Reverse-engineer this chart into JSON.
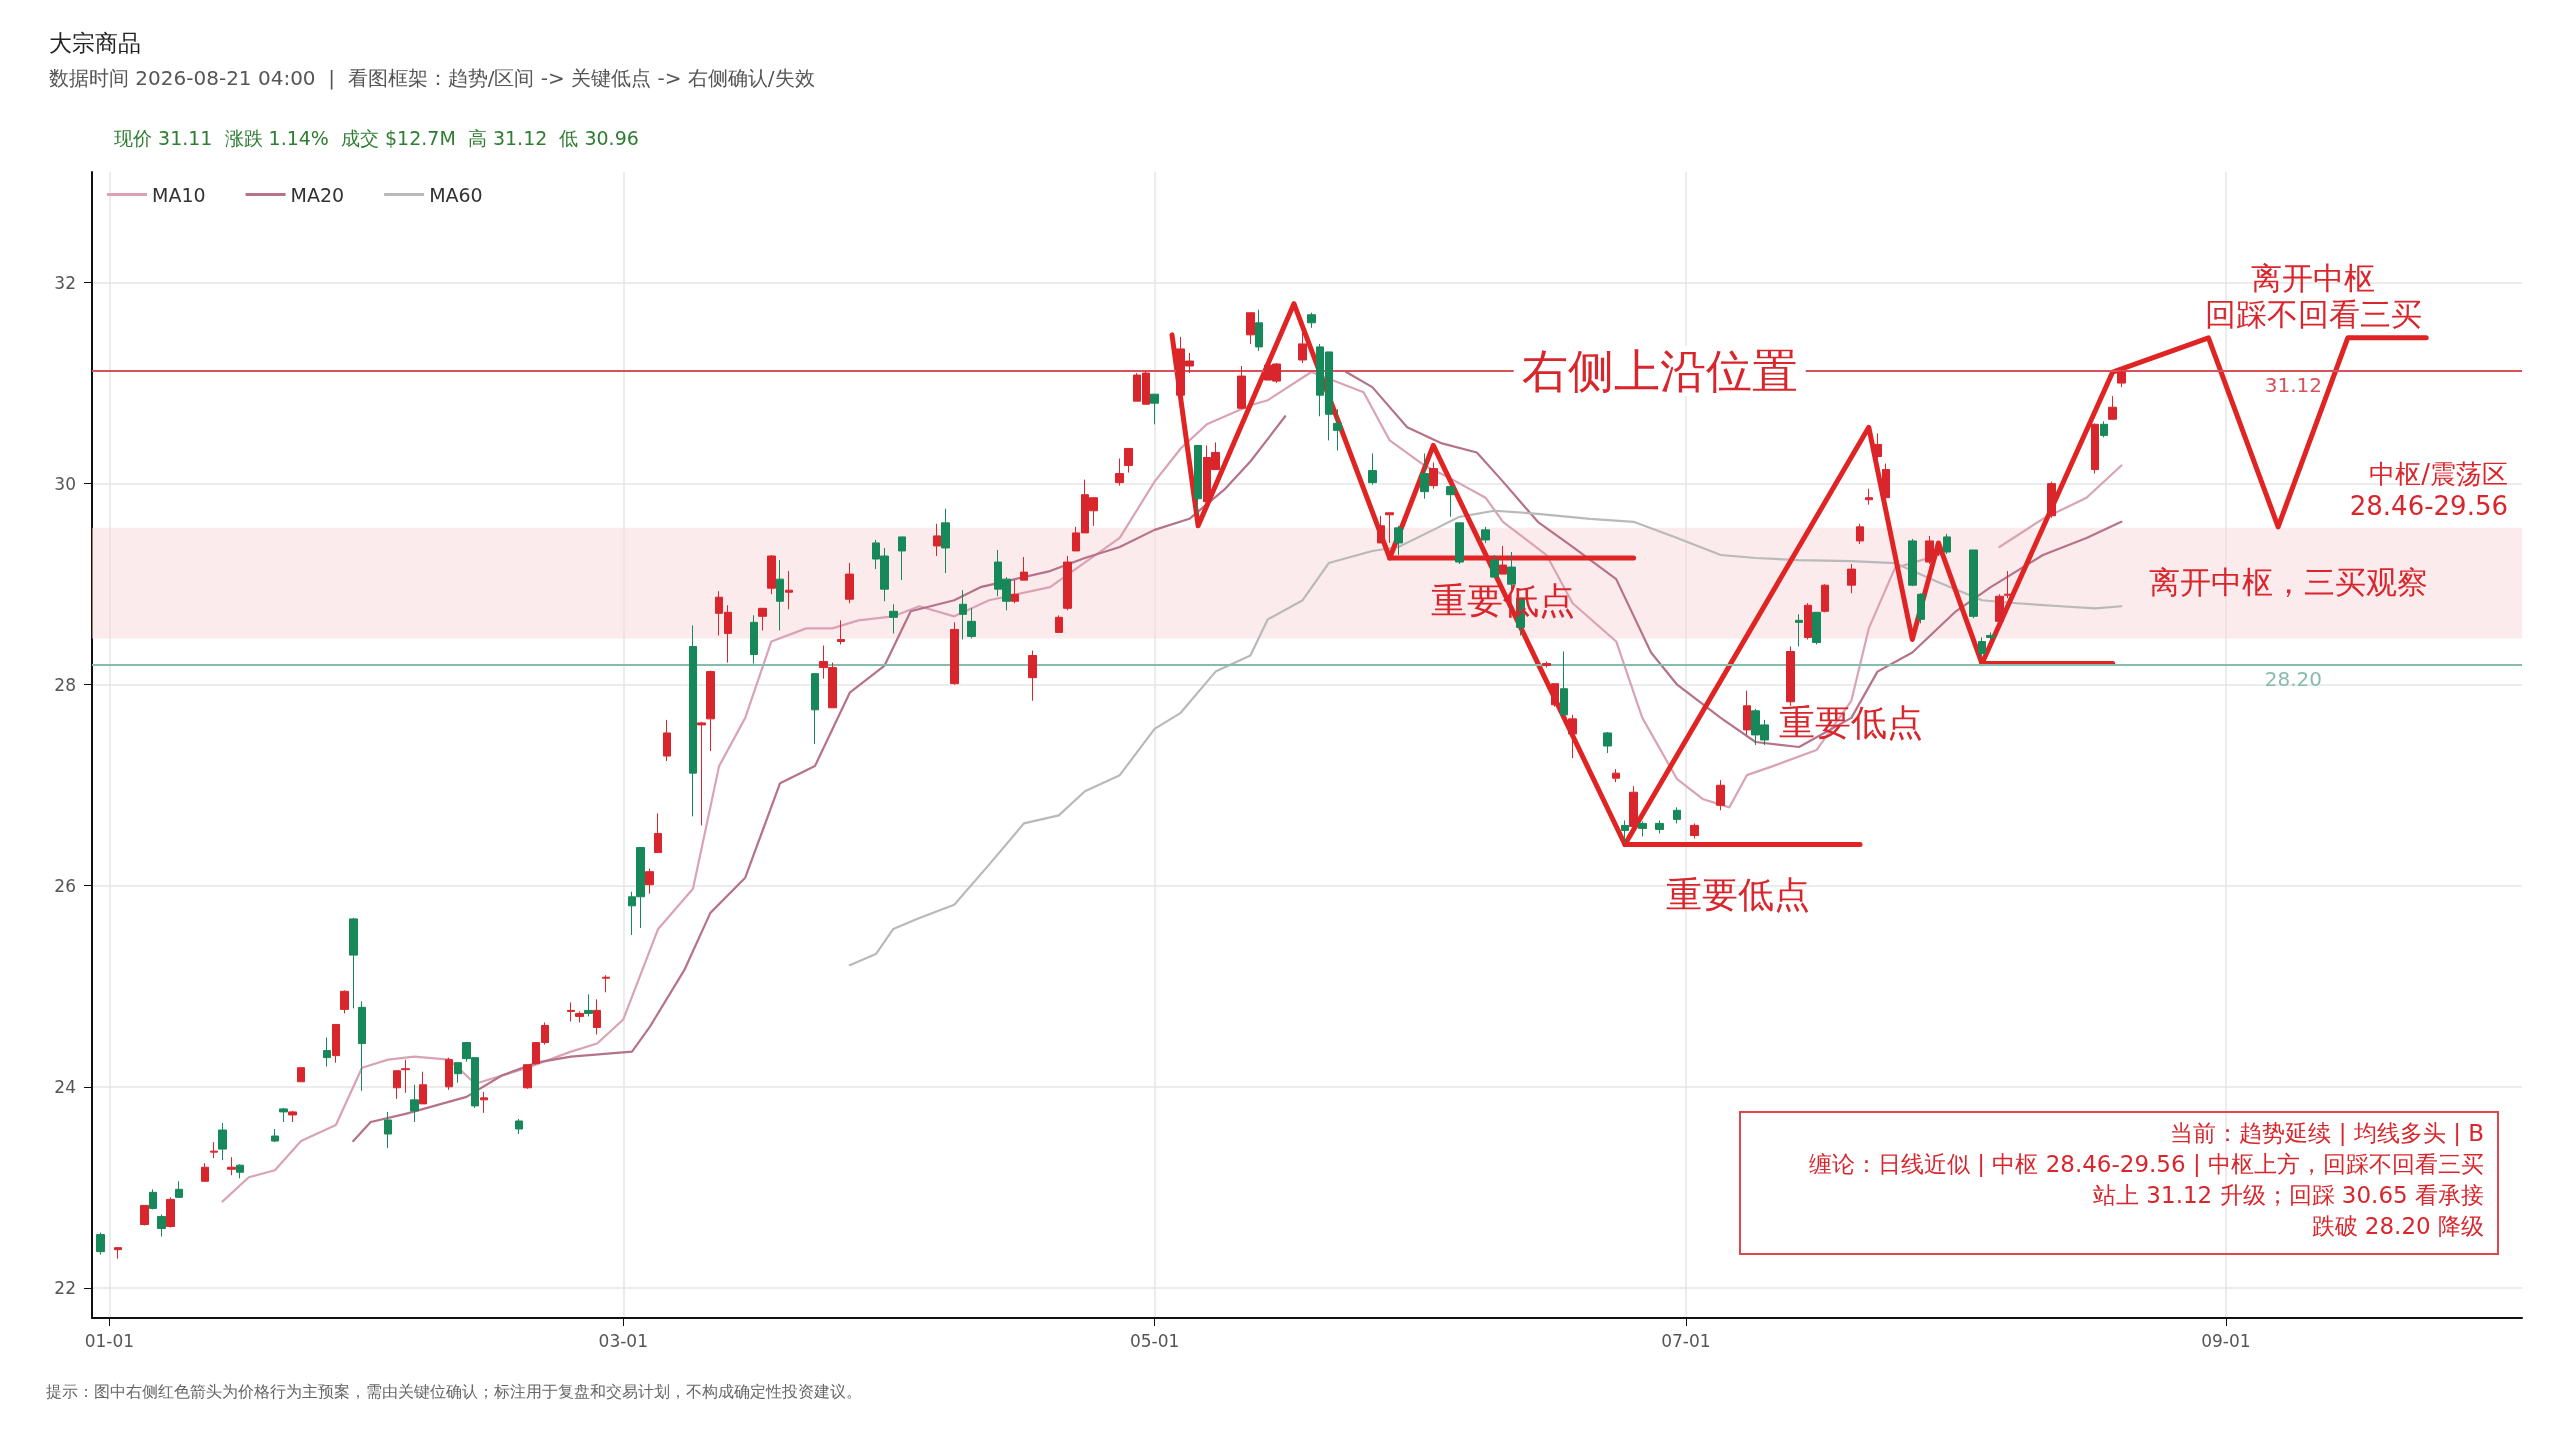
{
  "chart_data": {
    "type": "candlestick",
    "title": "大宗商品",
    "subtitle": "数据时间 2026-08-21 04:00  |  看图框架：趋势/区间 -> 关键低点 -> 右侧确认/失效",
    "x": [
      "2025-12-31",
      "2026-01-02",
      "2026-01-05",
      "2026-01-06",
      "2026-01-07",
      "2026-01-08",
      "2026-01-09",
      "2026-01-12",
      "2026-01-13",
      "2026-01-14",
      "2026-01-15",
      "2026-01-16",
      "2026-01-20",
      "2026-01-21",
      "2026-01-22",
      "2026-01-23",
      "2026-01-26",
      "2026-01-27",
      "2026-01-28",
      "2026-01-29",
      "2026-01-30",
      "2026-02-02",
      "2026-02-03",
      "2026-02-04",
      "2026-02-05",
      "2026-02-06",
      "2026-02-09",
      "2026-02-10",
      "2026-02-11",
      "2026-02-12",
      "2026-02-13",
      "2026-02-17",
      "2026-02-18",
      "2026-02-19",
      "2026-02-20",
      "2026-02-23",
      "2026-02-24",
      "2026-02-25",
      "2026-02-26",
      "2026-02-27",
      "2026-03-02",
      "2026-03-03",
      "2026-03-04",
      "2026-03-05",
      "2026-03-06",
      "2026-03-09",
      "2026-03-10",
      "2026-03-11",
      "2026-03-12",
      "2026-03-13",
      "2026-03-16",
      "2026-03-17",
      "2026-03-18",
      "2026-03-19",
      "2026-03-20",
      "2026-03-23",
      "2026-03-24",
      "2026-03-25",
      "2026-03-26",
      "2026-03-27",
      "2026-03-30",
      "2026-03-31",
      "2026-04-01",
      "2026-04-02",
      "2026-04-06",
      "2026-04-07",
      "2026-04-08",
      "2026-04-09",
      "2026-04-10",
      "2026-04-13",
      "2026-04-14",
      "2026-04-15",
      "2026-04-16",
      "2026-04-17",
      "2026-04-20",
      "2026-04-21",
      "2026-04-22",
      "2026-04-23",
      "2026-04-24",
      "2026-04-27",
      "2026-04-28",
      "2026-04-29",
      "2026-04-30",
      "2026-05-01",
      "2026-05-04",
      "2026-05-05",
      "2026-05-06",
      "2026-05-07",
      "2026-05-08",
      "2026-05-11",
      "2026-05-12",
      "2026-05-13",
      "2026-05-14",
      "2026-05-15",
      "2026-05-18",
      "2026-05-19",
      "2026-05-20",
      "2026-05-21",
      "2026-05-22",
      "2026-05-26",
      "2026-05-27",
      "2026-05-28",
      "2026-05-29",
      "2026-06-01",
      "2026-06-02",
      "2026-06-04",
      "2026-06-05",
      "2026-06-08",
      "2026-06-09",
      "2026-06-10",
      "2026-06-11",
      "2026-06-12",
      "2026-06-15",
      "2026-06-16",
      "2026-06-17",
      "2026-06-18",
      "2026-06-22",
      "2026-06-23",
      "2026-06-24",
      "2026-06-25",
      "2026-06-26",
      "2026-06-28",
      "2026-06-30",
      "2026-07-02",
      "2026-07-05",
      "2026-07-08",
      "2026-07-09",
      "2026-07-10",
      "2026-07-13",
      "2026-07-14",
      "2026-07-15",
      "2026-07-16",
      "2026-07-17",
      "2026-07-20",
      "2026-07-21",
      "2026-07-22",
      "2026-07-23",
      "2026-07-24",
      "2026-07-27",
      "2026-07-28",
      "2026-07-29",
      "2026-07-30",
      "2026-07-31",
      "2026-08-03",
      "2026-08-04",
      "2026-08-05",
      "2026-08-06",
      "2026-08-07",
      "2026-08-12",
      "2026-08-17",
      "2026-08-18",
      "2026-08-19",
      "2026-08-20"
    ],
    "ohlc": [
      [
        22.53,
        22.55,
        22.33,
        22.36
      ],
      [
        22.38,
        22.4,
        22.29,
        22.4
      ],
      [
        22.63,
        22.82,
        22.62,
        22.82
      ],
      [
        22.95,
        22.98,
        22.78,
        22.79
      ],
      [
        22.71,
        22.73,
        22.51,
        22.59
      ],
      [
        22.61,
        22.9,
        22.6,
        22.88
      ],
      [
        22.98,
        23.06,
        22.9,
        22.9
      ],
      [
        23.06,
        23.24,
        23.06,
        23.2
      ],
      [
        23.35,
        23.45,
        23.29,
        23.36
      ],
      [
        23.57,
        23.64,
        23.27,
        23.38
      ],
      [
        23.18,
        23.3,
        23.12,
        23.2
      ],
      [
        23.22,
        23.23,
        23.09,
        23.15
      ],
      [
        23.51,
        23.58,
        23.45,
        23.46
      ],
      [
        23.78,
        23.79,
        23.65,
        23.75
      ],
      [
        23.72,
        23.76,
        23.65,
        23.75
      ],
      [
        24.05,
        24.19,
        24.05,
        24.19
      ],
      [
        24.36,
        24.49,
        24.2,
        24.29
      ],
      [
        24.31,
        24.62,
        24.24,
        24.62
      ],
      [
        24.77,
        24.96,
        24.73,
        24.95
      ],
      [
        25.67,
        25.68,
        24.78,
        25.31
      ],
      [
        24.79,
        24.85,
        23.96,
        24.43
      ],
      [
        23.67,
        23.75,
        23.39,
        23.53
      ],
      [
        23.99,
        24.16,
        23.88,
        24.16
      ],
      [
        24.17,
        24.27,
        23.94,
        24.18
      ],
      [
        23.87,
        24.02,
        23.65,
        23.76
      ],
      [
        23.83,
        24.15,
        23.83,
        24.02
      ],
      [
        24.0,
        24.29,
        23.97,
        24.27
      ],
      [
        24.24,
        24.24,
        24.04,
        24.13
      ],
      [
        24.44,
        24.44,
        24.25,
        24.28
      ],
      [
        24.29,
        24.29,
        23.79,
        23.81
      ],
      [
        23.87,
        23.95,
        23.74,
        23.89
      ],
      [
        23.66,
        23.68,
        23.53,
        23.58
      ],
      [
        23.99,
        24.22,
        23.98,
        24.22
      ],
      [
        24.23,
        24.44,
        24.22,
        24.44
      ],
      [
        24.44,
        24.64,
        24.42,
        24.61
      ],
      [
        24.75,
        24.84,
        24.65,
        24.76
      ],
      [
        24.7,
        24.75,
        24.64,
        24.73
      ],
      [
        24.76,
        24.92,
        24.7,
        24.73
      ],
      [
        24.59,
        24.87,
        24.52,
        24.76
      ],
      [
        25.08,
        25.11,
        24.94,
        25.09
      ],
      [
        25.89,
        25.94,
        25.51,
        25.8
      ],
      [
        26.38,
        26.38,
        25.58,
        25.89
      ],
      [
        26.01,
        26.17,
        25.92,
        26.14
      ],
      [
        26.33,
        26.72,
        26.33,
        26.52
      ],
      [
        27.29,
        27.65,
        27.24,
        27.52
      ],
      [
        28.38,
        28.59,
        26.69,
        27.12
      ],
      [
        27.6,
        27.63,
        26.6,
        27.62
      ],
      [
        27.66,
        28.14,
        27.34,
        28.13
      ],
      [
        28.71,
        28.93,
        28.49,
        28.87
      ],
      [
        28.51,
        28.79,
        28.22,
        28.72
      ],
      [
        28.62,
        28.69,
        28.21,
        28.3
      ],
      [
        28.68,
        28.76,
        28.54,
        28.76
      ],
      [
        28.96,
        29.29,
        28.9,
        29.28
      ],
      [
        29.05,
        29.24,
        28.54,
        28.83
      ],
      [
        28.92,
        29.13,
        28.75,
        28.94
      ],
      [
        28.11,
        28.11,
        27.41,
        27.75
      ],
      [
        28.17,
        28.39,
        28.06,
        28.23
      ],
      [
        27.77,
        28.22,
        27.77,
        28.17
      ],
      [
        28.43,
        28.64,
        28.4,
        28.45
      ],
      [
        28.85,
        29.21,
        28.81,
        29.1
      ],
      [
        29.41,
        29.44,
        29.15,
        29.25
      ],
      [
        29.28,
        29.36,
        28.83,
        28.95
      ],
      [
        28.73,
        28.8,
        28.51,
        28.67
      ],
      [
        29.47,
        29.47,
        29.04,
        29.33
      ],
      [
        29.38,
        29.6,
        29.28,
        29.48
      ],
      [
        29.61,
        29.75,
        29.11,
        29.36
      ],
      [
        28.01,
        28.62,
        28.0,
        28.55
      ],
      [
        28.8,
        28.94,
        28.45,
        28.7
      ],
      [
        28.63,
        28.76,
        28.46,
        28.48
      ],
      [
        29.22,
        29.34,
        28.88,
        28.95
      ],
      [
        29.05,
        29.07,
        28.74,
        28.83
      ],
      [
        28.83,
        29.04,
        28.81,
        28.9
      ],
      [
        29.04,
        29.27,
        29.04,
        29.12
      ],
      [
        28.07,
        28.34,
        27.84,
        28.29
      ],
      [
        28.52,
        28.69,
        28.52,
        28.67
      ],
      [
        28.76,
        29.28,
        28.74,
        29.22
      ],
      [
        29.33,
        29.57,
        29.33,
        29.51
      ],
      [
        29.51,
        30.04,
        29.51,
        29.89
      ],
      [
        29.73,
        29.86,
        29.58,
        29.86
      ],
      [
        30.01,
        30.25,
        29.98,
        30.1
      ],
      [
        30.18,
        30.35,
        30.11,
        30.35
      ],
      [
        30.82,
        31.1,
        30.82,
        31.08
      ],
      [
        30.79,
        31.12,
        30.79,
        31.1
      ],
      [
        30.89,
        30.89,
        30.59,
        30.8
      ],
      [
        30.88,
        31.46,
        30.86,
        31.34
      ],
      [
        31.17,
        31.3,
        31.1,
        31.22
      ],
      [
        30.38,
        30.38,
        29.7,
        29.85
      ],
      [
        29.82,
        30.38,
        29.8,
        30.26
      ],
      [
        30.14,
        30.41,
        30.14,
        30.31
      ],
      [
        30.75,
        31.17,
        30.74,
        31.07
      ],
      [
        31.48,
        31.7,
        31.39,
        31.7
      ],
      [
        31.6,
        31.73,
        31.32,
        31.36
      ],
      [
        31.03,
        31.2,
        31.03,
        31.18
      ],
      [
        31.02,
        31.2,
        31.0,
        31.19
      ],
      [
        31.23,
        31.6,
        31.2,
        31.39
      ],
      [
        31.68,
        31.7,
        31.55,
        31.6
      ],
      [
        31.36,
        31.39,
        30.67,
        30.88
      ],
      [
        31.31,
        31.31,
        30.43,
        30.69
      ],
      [
        30.6,
        30.74,
        30.33,
        30.53
      ],
      [
        30.13,
        30.3,
        29.99,
        30.01
      ],
      [
        29.41,
        29.68,
        29.41,
        29.58
      ],
      [
        29.69,
        29.71,
        29.41,
        29.71
      ],
      [
        29.56,
        29.58,
        29.29,
        29.41
      ],
      [
        30.1,
        30.3,
        29.85,
        29.92
      ],
      [
        29.98,
        30.21,
        29.95,
        30.15
      ],
      [
        29.97,
        29.97,
        29.67,
        29.89
      ],
      [
        29.61,
        29.61,
        29.2,
        29.22
      ],
      [
        29.54,
        29.57,
        29.41,
        29.44
      ],
      [
        29.24,
        29.29,
        29.07,
        29.07
      ],
      [
        29.1,
        29.38,
        29.1,
        29.19
      ],
      [
        29.17,
        29.32,
        28.95,
        29.0
      ],
      [
        28.86,
        28.86,
        28.49,
        28.57
      ],
      [
        28.19,
        28.23,
        28.17,
        28.21
      ],
      [
        27.8,
        28.01,
        27.78,
        28.01
      ],
      [
        27.96,
        28.33,
        27.7,
        27.7
      ],
      [
        27.51,
        27.7,
        27.27,
        27.66
      ],
      [
        27.52,
        27.53,
        27.32,
        27.39
      ],
      [
        27.07,
        27.16,
        27.03,
        27.12
      ],
      [
        26.6,
        26.65,
        26.42,
        26.55
      ],
      [
        26.59,
        26.99,
        26.55,
        26.93
      ],
      [
        26.62,
        26.64,
        26.49,
        26.57
      ],
      [
        26.62,
        26.65,
        26.52,
        26.56
      ],
      [
        26.75,
        26.78,
        26.62,
        26.66
      ],
      [
        26.5,
        26.62,
        26.47,
        26.6
      ],
      [
        26.8,
        27.05,
        26.75,
        27.0
      ],
      [
        27.55,
        27.94,
        27.5,
        27.79
      ],
      [
        27.74,
        27.76,
        27.4,
        27.5
      ],
      [
        27.6,
        27.65,
        27.4,
        27.45
      ],
      [
        27.83,
        28.38,
        27.79,
        28.33
      ],
      [
        28.64,
        28.7,
        28.38,
        28.62
      ],
      [
        28.47,
        28.81,
        28.45,
        28.79
      ],
      [
        28.72,
        28.72,
        28.4,
        28.42
      ],
      [
        28.73,
        29.0,
        28.72,
        28.99
      ],
      [
        28.99,
        29.2,
        28.91,
        29.15
      ],
      [
        29.43,
        29.6,
        29.4,
        29.57
      ],
      [
        29.84,
        29.95,
        29.79,
        29.86
      ],
      [
        30.27,
        30.5,
        30.25,
        30.39
      ],
      [
        29.86,
        30.2,
        29.85,
        30.14
      ],
      [
        29.43,
        29.45,
        28.98,
        28.99
      ],
      [
        28.9,
        28.91,
        28.61,
        28.65
      ],
      [
        29.22,
        29.48,
        29.2,
        29.43
      ],
      [
        29.3,
        29.4,
        29.28,
        29.34
      ],
      [
        29.47,
        29.5,
        29.3,
        29.32
      ],
      [
        29.34,
        29.34,
        28.66,
        28.68
      ],
      [
        28.43,
        28.47,
        28.27,
        28.31
      ],
      [
        28.49,
        28.52,
        28.44,
        28.47
      ],
      [
        28.63,
        28.9,
        28.61,
        28.88
      ],
      [
        28.89,
        29.13,
        28.86,
        28.9
      ],
      [
        29.68,
        30.02,
        29.66,
        30.0
      ],
      [
        30.14,
        30.6,
        30.1,
        30.59
      ],
      [
        30.59,
        30.62,
        30.46,
        30.48
      ],
      [
        30.64,
        30.87,
        30.64,
        30.76
      ],
      [
        31.0,
        31.12,
        30.96,
        31.11
      ]
    ],
    "series": [
      {
        "type": "line",
        "name": "MA10",
        "color": "#d9a3b5",
        "x": [
          "2026-01-14",
          "2026-01-17",
          "2026-01-20",
          "2026-01-23",
          "2026-01-27",
          "2026-01-30",
          "2026-02-02",
          "2026-02-05",
          "2026-02-09",
          "2026-02-12",
          "2026-02-18",
          "2026-02-23",
          "2026-02-26",
          "2026-03-01",
          "2026-03-05",
          "2026-03-09",
          "2026-03-12",
          "2026-03-15",
          "2026-03-18",
          "2026-03-22",
          "2026-03-25",
          "2026-03-28",
          "2026-04-01",
          "2026-04-04",
          "2026-04-08",
          "2026-04-12",
          "2026-04-19",
          "2026-04-27",
          "2026-05-01",
          "2026-05-04",
          "2026-05-07",
          "2026-05-12",
          "2026-05-14",
          "2026-05-19",
          "2026-05-25",
          "2026-05-28",
          "2026-06-01",
          "2026-06-04",
          "2026-06-08",
          "2026-06-10",
          "2026-06-15",
          "2026-06-18",
          "2026-06-23",
          "2026-06-26",
          "2026-06-30",
          "2026-07-03",
          "2026-07-06",
          "2026-07-08",
          "2026-07-11",
          "2026-07-16",
          "2026-07-20",
          "2026-07-22",
          "2026-07-25",
          "2026-07-30",
          "2026-08-03",
          "2026-08-06",
          "2026-08-11",
          "2026-08-16",
          "2026-08-20"
        ],
        "values": [
          22.86,
          23.1,
          23.17,
          23.46,
          23.62,
          24.19,
          24.27,
          24.3,
          24.27,
          24.03,
          24.19,
          24.35,
          24.43,
          24.67,
          25.57,
          25.97,
          27.19,
          27.67,
          28.43,
          28.56,
          28.56,
          28.64,
          28.68,
          28.78,
          28.68,
          28.84,
          28.97,
          29.46,
          30.02,
          30.35,
          30.59,
          30.78,
          30.83,
          31.11,
          30.91,
          30.43,
          30.18,
          30.05,
          29.86,
          29.62,
          29.29,
          28.81,
          28.43,
          27.67,
          27.06,
          26.86,
          26.78,
          27.1,
          27.19,
          27.35,
          27.84,
          28.56,
          29.16,
          29.29,
          null,
          29.37,
          29.65,
          29.86,
          30.18
        ]
      },
      {
        "type": "line",
        "name": "MA20",
        "color": "#b5728a",
        "x": [
          "2026-01-29",
          "2026-01-31",
          "2026-02-04",
          "2026-02-11",
          "2026-02-15",
          "2026-02-19",
          "2026-02-23",
          "2026-03-02",
          "2026-03-04",
          "2026-03-08",
          "2026-03-11",
          "2026-03-15",
          "2026-03-19",
          "2026-03-23",
          "2026-03-27",
          "2026-03-31",
          "2026-04-03",
          "2026-04-08",
          "2026-04-11",
          "2026-04-15",
          "2026-04-19",
          "2026-04-23",
          "2026-04-27",
          "2026-05-01",
          "2026-05-05",
          "2026-05-09",
          "2026-05-12",
          "2026-05-16",
          "2026-05-20",
          "2026-05-23",
          "2026-05-26",
          "2026-05-30",
          "2026-06-03",
          "2026-06-07",
          "2026-06-10",
          "2026-06-14",
          "2026-06-18",
          "2026-06-23",
          "2026-06-27",
          "2026-06-30",
          "2026-07-05",
          "2026-07-09",
          "2026-07-14",
          "2026-07-20",
          "2026-07-23",
          "2026-07-27",
          "2026-08-01",
          "2026-08-05",
          "2026-08-11",
          "2026-08-16",
          "2026-08-20"
        ],
        "values": [
          23.46,
          23.65,
          23.73,
          23.9,
          24.11,
          24.24,
          24.3,
          24.35,
          24.59,
          25.16,
          25.73,
          26.08,
          27.02,
          27.19,
          27.92,
          28.19,
          28.73,
          28.84,
          28.97,
          29.05,
          29.13,
          29.26,
          29.37,
          29.54,
          29.65,
          29.94,
          30.22,
          30.67,
          null,
          31.11,
          30.96,
          30.56,
          30.4,
          30.31,
          30.02,
          29.62,
          29.37,
          29.05,
          28.32,
          28.0,
          27.67,
          27.43,
          27.38,
          27.67,
          28.13,
          28.32,
          28.73,
          28.97,
          29.29,
          29.46,
          29.62
        ]
      },
      {
        "type": "line",
        "name": "MA60",
        "color": "#b9b9b9",
        "x": [
          "2026-03-27",
          "2026-03-30",
          "2026-04-01",
          "2026-04-04",
          "2026-04-08",
          "2026-04-12",
          "2026-04-16",
          "2026-04-20",
          "2026-04-23",
          "2026-04-27",
          "2026-05-01",
          "2026-05-04",
          "2026-05-08",
          "2026-05-12",
          "2026-05-14",
          "2026-05-18",
          "2026-05-21",
          "2026-05-26",
          "2026-05-29",
          "2026-06-02",
          "2026-06-05",
          "2026-06-09",
          "2026-06-14",
          "2026-06-20",
          "2026-06-25",
          "2026-06-30",
          "2026-07-05",
          "2026-07-09",
          "2026-07-14",
          "2026-07-20",
          "2026-07-25",
          "2026-07-30",
          "2026-08-04",
          "2026-08-08",
          "2026-08-13",
          "2026-08-17",
          "2026-08-20"
        ],
        "values": [
          25.21,
          25.32,
          25.57,
          25.68,
          25.81,
          26.21,
          26.62,
          26.7,
          26.94,
          27.1,
          27.56,
          27.72,
          28.13,
          28.29,
          28.65,
          28.84,
          29.21,
          29.33,
          29.37,
          29.54,
          29.67,
          29.73,
          29.7,
          29.65,
          29.62,
          29.46,
          29.29,
          29.26,
          29.24,
          29.23,
          29.21,
          29.02,
          28.84,
          28.81,
          28.78,
          28.76,
          28.78
        ]
      },
      {
        "type": "line",
        "color": "#e02323",
        "x": [
          "2026-05-03",
          "2026-05-06",
          "2026-05-17",
          "2026-05-28",
          "2026-06-02",
          "2026-06-24",
          "2026-07-22",
          "2026-07-27",
          "2026-07-30",
          "2026-08-04",
          "2026-08-19",
          "2026-08-30",
          "2026-09-07",
          "2026-09-15",
          "2026-09-24"
        ],
        "values": [
          31.48,
          29.58,
          31.79,
          29.26,
          30.38,
          26.41,
          30.56,
          28.45,
          29.41,
          28.21,
          31.11,
          31.45,
          29.57,
          31.45,
          31.45
        ]
      },
      {
        "type": "line",
        "color": "#e02323",
        "x": [
          "2026-05-28",
          "2026-06-25"
        ],
        "values": [
          29.26,
          29.26
        ]
      },
      {
        "type": "line",
        "color": "#e02323",
        "x": [
          "2026-06-24",
          "2026-07-21"
        ],
        "values": [
          26.41,
          26.41
        ]
      },
      {
        "type": "line",
        "color": "#e02323",
        "x": [
          "2026-08-04",
          "2026-08-19"
        ],
        "values": [
          28.21,
          28.21
        ]
      }
    ],
    "xlim": [
      "2025-12-30",
      "2026-10-05"
    ],
    "xticks": [
      {
        "value": "2026-01-01",
        "label": "01-01"
      },
      {
        "value": "2026-03-01",
        "label": "03-01"
      },
      {
        "value": "2026-05-01",
        "label": "05-01"
      },
      {
        "value": "2026-07-01",
        "label": "07-01"
      },
      {
        "value": "2026-09-01",
        "label": "09-01"
      }
    ],
    "ylim": [
      21.7,
      33.1
    ],
    "yticks": [
      22,
      24,
      26,
      28,
      30,
      32
    ],
    "ref_lines": [
      {
        "axis": "y",
        "value": 31.12,
        "label": "31.12",
        "color": "#d9505a"
      },
      {
        "axis": "y",
        "value": 28.2,
        "label": "28.20",
        "color": "#86bcac"
      }
    ],
    "bands": [
      {
        "axis": "y",
        "from": 28.46,
        "to": 29.56,
        "label": "中枢/震荡区\n28.46-29.56",
        "color": "#f7dadd"
      }
    ],
    "annotations": [
      "现价 31.11  涨跌 1.14%  成交 $12.7M  高 31.12  低 30.96",
      {
        "text": "右侧上沿位置",
        "x": "2026-06-28",
        "y": 31.12
      },
      {
        "text": "重要低点",
        "x": "2026-06-10",
        "y": 29.26
      },
      {
        "text": "重要低点",
        "x": "2026-07-20",
        "y": 27.62
      },
      {
        "text": "重要低点",
        "x": "2026-07-07",
        "y": 26.41
      },
      {
        "text": "离开中枢",
        "x": "2026-08-30",
        "y": 31.45
      },
      {
        "text": "回踩不回看三买",
        "x": "2026-08-30",
        "y": 31.45
      },
      {
        "text": "离开中枢，三买观察",
        "x": "2026-09-07",
        "y": 29.57
      },
      "当前：趋势延续 | 均线多头 | B",
      "缠论：日线近似 | 中枢 28.46-29.56 | 中枢上方，回踩不回看三买",
      "站上 31.12 升级；回踩 30.65 看承接",
      "跌破 28.20 降级",
      "提示：图中右侧红色箭头为价格行为主预案，需由关键位确认；标注用于复盘和交易计划，不构成确定性投资建议。"
    ],
    "grid": true,
    "legend": "top left",
    "marker": "none",
    "line_style": "solid"
  }
}
